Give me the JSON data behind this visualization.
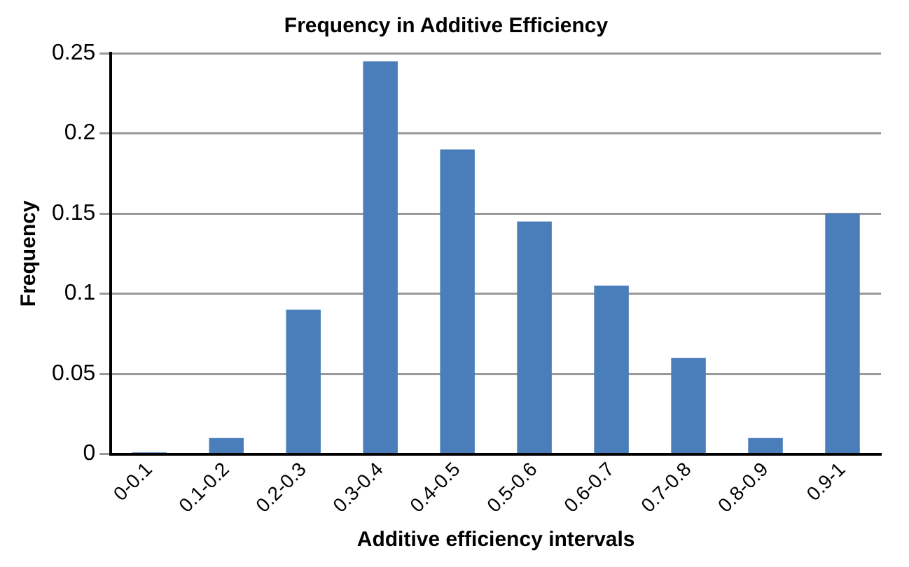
{
  "chart_data": {
    "type": "bar",
    "title": "Frequency in Additive Efficiency",
    "xlabel": "Additive efficiency intervals",
    "ylabel": "Frequency",
    "categories": [
      "0-0.1",
      "0.1-0.2",
      "0.2-0.3",
      "0.3-0.4",
      "0.4-0.5",
      "0.5-0.6",
      "0.6-0.7",
      "0.7-0.8",
      "0.8-0.9",
      "0.9-1"
    ],
    "values": [
      0.001,
      0.01,
      0.09,
      0.245,
      0.19,
      0.145,
      0.105,
      0.06,
      0.01,
      0.15
    ],
    "color": "#4a7ebb",
    "ylim": [
      0,
      0.25
    ],
    "yticks": [
      0,
      0.05,
      0.1,
      0.15,
      0.2,
      0.25
    ],
    "grid": "y"
  }
}
